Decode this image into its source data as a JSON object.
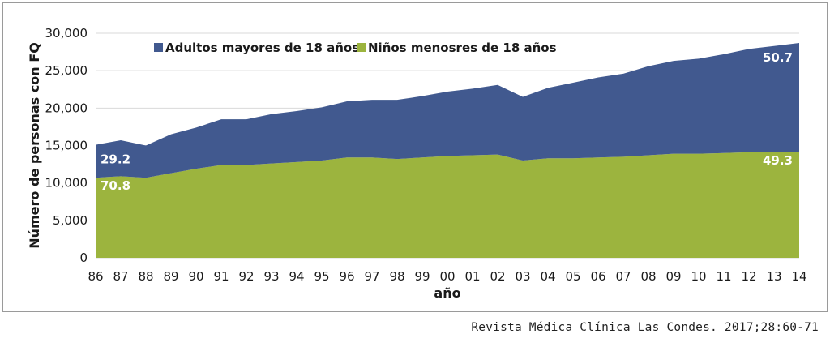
{
  "chart_data": {
    "type": "area",
    "stacked": true,
    "title": "",
    "xlabel": "año",
    "ylabel": "Número de personas con FQ",
    "ylim": [
      0,
      30000
    ],
    "yticks": [
      "0",
      "5,000",
      "10,000",
      "15,000",
      "20,000",
      "25,000",
      "30,000"
    ],
    "ytick_values": [
      0,
      5000,
      10000,
      15000,
      20000,
      25000,
      30000
    ],
    "grid": true,
    "legend_position": "top-left",
    "categories": [
      "86",
      "87",
      "88",
      "89",
      "90",
      "91",
      "92",
      "93",
      "94",
      "95",
      "96",
      "97",
      "98",
      "99",
      "00",
      "01",
      "02",
      "03",
      "04",
      "05",
      "06",
      "07",
      "08",
      "09",
      "10",
      "11",
      "12",
      "13",
      "14"
    ],
    "series": [
      {
        "name": "Niños menosres de 18 años",
        "color": "#9cb43e",
        "values": [
          10700,
          10900,
          10700,
          11300,
          11900,
          12400,
          12400,
          12600,
          12800,
          13000,
          13400,
          13400,
          13200,
          13400,
          13600,
          13700,
          13800,
          13000,
          13300,
          13300,
          13400,
          13500,
          13700,
          13900,
          13900,
          14000,
          14100,
          14100,
          14100
        ]
      },
      {
        "name": "Adultos mayores de 18 años",
        "color": "#41598f",
        "values": [
          4400,
          4800,
          4300,
          5200,
          5500,
          6100,
          6100,
          6600,
          6800,
          7100,
          7500,
          7700,
          7900,
          8200,
          8600,
          8900,
          9300,
          8500,
          9400,
          10100,
          10700,
          11100,
          11900,
          12400,
          12700,
          13200,
          13800,
          14200,
          14600
        ]
      }
    ],
    "annotations": [
      {
        "text": "29.2",
        "series": 1,
        "index": 0
      },
      {
        "text": "70.8",
        "series": 0,
        "index": 0
      },
      {
        "text": "50.7",
        "series": 1,
        "index": 28
      },
      {
        "text": "49.3",
        "series": 0,
        "index": 28
      }
    ]
  },
  "citation": "Revista Médica Clínica Las Condes. 2017;28:60-71"
}
